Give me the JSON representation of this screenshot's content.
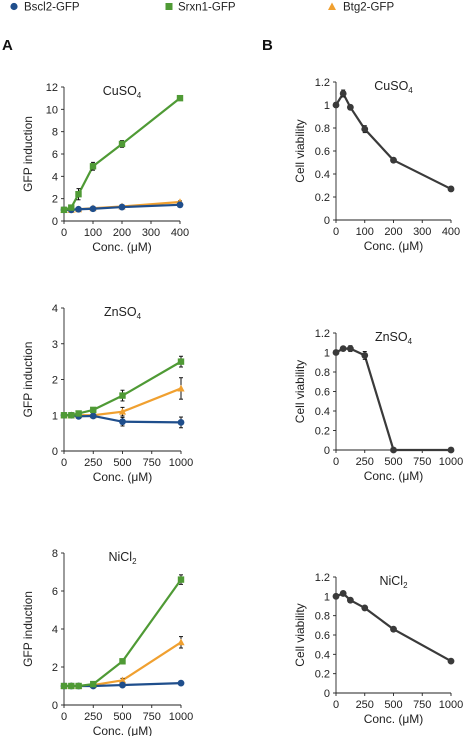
{
  "legend": [
    {
      "name": "Bscl2-GFP",
      "color": "#1f4e8c",
      "marker": "circle"
    },
    {
      "name": "Srxn1-GFP",
      "color": "#4f9a35",
      "marker": "square"
    },
    {
      "name": "Btg2-GFP",
      "color": "#f0a030",
      "marker": "triangle"
    }
  ],
  "panel_labels": [
    "A",
    "B"
  ],
  "chart_data": [
    {
      "type": "line",
      "panel": "A",
      "title_main": "CuSO",
      "title_sub": "4",
      "xlabel": "Conc. (μM)",
      "ylabel": "GFP induction",
      "xlim": [
        0,
        400
      ],
      "ylim": [
        0,
        12
      ],
      "xticks": [
        0,
        100,
        200,
        300,
        400
      ],
      "yticks": [
        0,
        2,
        4,
        6,
        8,
        10,
        12
      ],
      "series": [
        {
          "name": "Btg2-GFP",
          "color": "#f0a030",
          "marker": "triangle",
          "x": [
            0,
            25,
            50,
            100,
            200,
            400
          ],
          "y": [
            1.0,
            1.0,
            1.05,
            1.15,
            1.3,
            1.7
          ],
          "err": [
            0.05,
            0.05,
            0.05,
            0.08,
            0.08,
            0.1
          ]
        },
        {
          "name": "Bscl2-GFP",
          "color": "#1f4e8c",
          "marker": "circle",
          "x": [
            0,
            25,
            50,
            100,
            200,
            400
          ],
          "y": [
            1.0,
            1.0,
            1.05,
            1.1,
            1.25,
            1.45
          ],
          "err": [
            0.05,
            0.05,
            0.05,
            0.05,
            0.08,
            0.1
          ]
        },
        {
          "name": "Srxn1-GFP",
          "color": "#4f9a35",
          "marker": "square",
          "x": [
            0,
            25,
            50,
            100,
            200,
            400
          ],
          "y": [
            1.0,
            1.2,
            2.4,
            4.9,
            6.9,
            11.0
          ],
          "err": [
            0.05,
            0.15,
            0.5,
            0.35,
            0.3,
            0.15
          ]
        }
      ]
    },
    {
      "type": "line",
      "panel": "B",
      "title_main": "CuSO",
      "title_sub": "4",
      "xlabel": "Conc. (μM)",
      "ylabel": "Cell viability",
      "xlim": [
        0,
        400
      ],
      "ylim": [
        0,
        1.2
      ],
      "xticks": [
        0,
        100,
        200,
        300,
        400
      ],
      "yticks": [
        0,
        0.2,
        0.4,
        0.6,
        0.8,
        1.0,
        1.2
      ],
      "series": [
        {
          "color": "#3a3a3a",
          "marker": "circle",
          "x": [
            0,
            25,
            50,
            100,
            200,
            400
          ],
          "y": [
            1.0,
            1.1,
            0.98,
            0.79,
            0.52,
            0.27
          ],
          "err": [
            0.02,
            0.03,
            0.02,
            0.03,
            0.02,
            0.02
          ]
        }
      ]
    },
    {
      "type": "line",
      "panel": "A",
      "title_main": "ZnSO",
      "title_sub": "4",
      "xlabel": "Conc. (μM)",
      "ylabel": "GFP induction",
      "xlim": [
        0,
        1000
      ],
      "ylim": [
        0,
        4
      ],
      "xticks": [
        0,
        250,
        500,
        750,
        1000
      ],
      "yticks": [
        0,
        1,
        2,
        3,
        4
      ],
      "series": [
        {
          "name": "Btg2-GFP",
          "color": "#f0a030",
          "marker": "triangle",
          "x": [
            0,
            62.5,
            125,
            250,
            500,
            1000
          ],
          "y": [
            1.0,
            1.0,
            1.0,
            1.0,
            1.1,
            1.75
          ],
          "err": [
            0.04,
            0.04,
            0.04,
            0.05,
            0.12,
            0.3
          ]
        },
        {
          "name": "Bscl2-GFP",
          "color": "#1f4e8c",
          "marker": "circle",
          "x": [
            0,
            62.5,
            125,
            250,
            500,
            1000
          ],
          "y": [
            1.0,
            1.0,
            0.97,
            0.98,
            0.82,
            0.8
          ],
          "err": [
            0.04,
            0.04,
            0.04,
            0.04,
            0.12,
            0.15
          ]
        },
        {
          "name": "Srxn1-GFP",
          "color": "#4f9a35",
          "marker": "square",
          "x": [
            0,
            62.5,
            125,
            250,
            500,
            1000
          ],
          "y": [
            1.0,
            1.0,
            1.05,
            1.15,
            1.55,
            2.5
          ],
          "err": [
            0.04,
            0.04,
            0.05,
            0.06,
            0.15,
            0.15
          ]
        }
      ]
    },
    {
      "type": "line",
      "panel": "B",
      "title_main": "ZnSO",
      "title_sub": "4",
      "xlabel": "Conc. (μM)",
      "ylabel": "Cell viability",
      "xlim": [
        0,
        1000
      ],
      "ylim": [
        0,
        1.2
      ],
      "xticks": [
        0,
        250,
        500,
        750,
        1000
      ],
      "yticks": [
        0,
        0.2,
        0.4,
        0.6,
        0.8,
        1.0,
        1.2
      ],
      "series": [
        {
          "color": "#3a3a3a",
          "marker": "circle",
          "x": [
            0,
            62.5,
            125,
            250,
            500,
            1000
          ],
          "y": [
            1.0,
            1.04,
            1.04,
            0.97,
            0.0,
            0.0
          ],
          "err": [
            0.02,
            0.02,
            0.03,
            0.04,
            0.0,
            0.0
          ]
        }
      ]
    },
    {
      "type": "line",
      "panel": "A",
      "title_main": "NiCl",
      "title_sub": "2",
      "xlabel": "Conc. (μM)",
      "ylabel": "GFP induction",
      "xlim": [
        0,
        1000
      ],
      "ylim": [
        0,
        8
      ],
      "xticks": [
        0,
        250,
        500,
        750,
        1000
      ],
      "yticks": [
        0,
        2,
        4,
        6,
        8
      ],
      "series": [
        {
          "name": "Btg2-GFP",
          "color": "#f0a030",
          "marker": "triangle",
          "x": [
            0,
            62.5,
            125,
            250,
            500,
            1000
          ],
          "y": [
            1.0,
            1.0,
            1.0,
            1.05,
            1.3,
            3.3
          ],
          "err": [
            0.05,
            0.05,
            0.05,
            0.05,
            0.1,
            0.3
          ]
        },
        {
          "name": "Bscl2-GFP",
          "color": "#1f4e8c",
          "marker": "circle",
          "x": [
            0,
            62.5,
            125,
            250,
            500,
            1000
          ],
          "y": [
            1.0,
            1.0,
            1.0,
            1.0,
            1.05,
            1.15
          ],
          "err": [
            0.05,
            0.05,
            0.05,
            0.05,
            0.05,
            0.05
          ]
        },
        {
          "name": "Srxn1-GFP",
          "color": "#4f9a35",
          "marker": "square",
          "x": [
            0,
            62.5,
            125,
            250,
            500,
            1000
          ],
          "y": [
            1.0,
            1.0,
            1.0,
            1.1,
            2.3,
            6.6
          ],
          "err": [
            0.05,
            0.05,
            0.05,
            0.05,
            0.12,
            0.25
          ]
        }
      ]
    },
    {
      "type": "line",
      "panel": "B",
      "title_main": "NiCl",
      "title_sub": "2",
      "xlabel": "Conc. (μM)",
      "ylabel": "Cell viability",
      "xlim": [
        0,
        1000
      ],
      "ylim": [
        0,
        1.2
      ],
      "xticks": [
        0,
        250,
        500,
        750,
        1000
      ],
      "yticks": [
        0,
        0.2,
        0.4,
        0.6,
        0.8,
        1.0,
        1.2
      ],
      "series": [
        {
          "color": "#3a3a3a",
          "marker": "circle",
          "x": [
            0,
            62.5,
            125,
            250,
            500,
            1000
          ],
          "y": [
            1.0,
            1.03,
            0.96,
            0.88,
            0.66,
            0.33
          ],
          "err": [
            0.02,
            0.02,
            0.02,
            0.02,
            0.02,
            0.02
          ]
        }
      ]
    }
  ]
}
